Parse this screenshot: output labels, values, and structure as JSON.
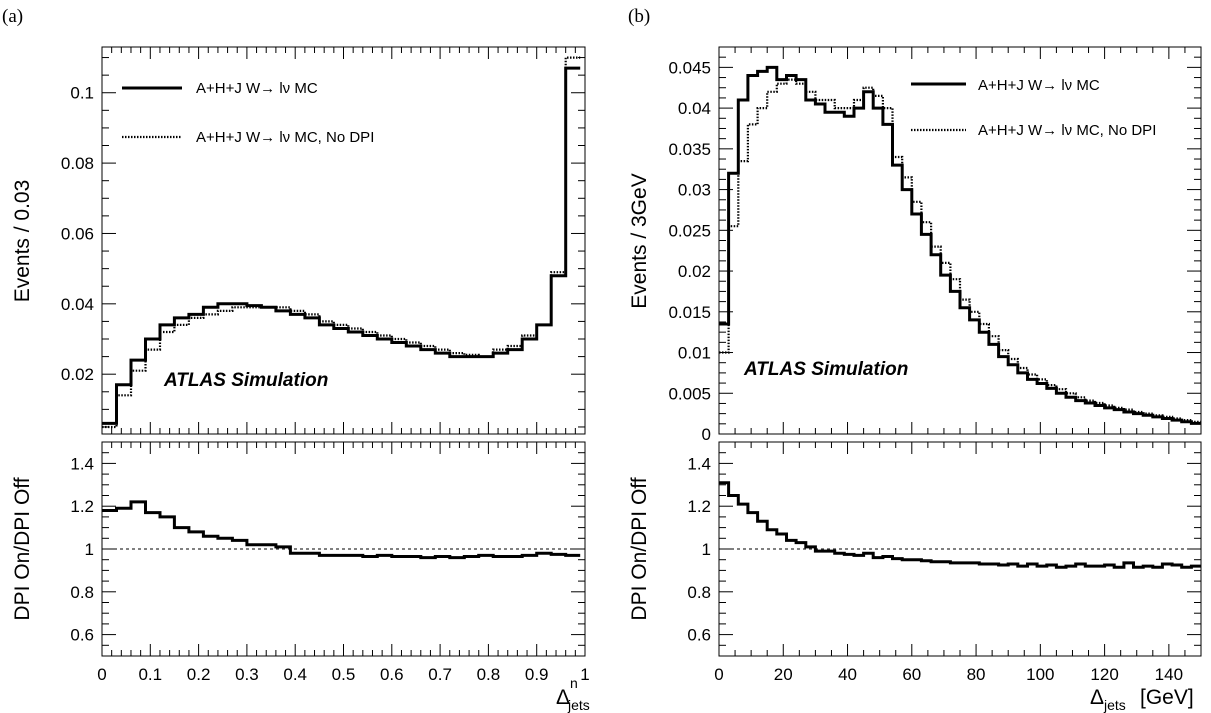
{
  "chart_data": [
    {
      "panel_label": "(a)",
      "type": "line",
      "step": true,
      "x_bin_edges": [
        0,
        0.03,
        0.06,
        0.09,
        0.12,
        0.15,
        0.18,
        0.21,
        0.24,
        0.27,
        0.3,
        0.33,
        0.36,
        0.39,
        0.42,
        0.45,
        0.48,
        0.51,
        0.54,
        0.57,
        0.6,
        0.63,
        0.66,
        0.69,
        0.72,
        0.75,
        0.78,
        0.81,
        0.84,
        0.87,
        0.9,
        0.93,
        0.96,
        0.99
      ],
      "series": [
        {
          "name": "A+H+J W→ lν MC",
          "style": "solid",
          "values": [
            0.006,
            0.017,
            0.024,
            0.03,
            0.034,
            0.036,
            0.037,
            0.039,
            0.04,
            0.04,
            0.0395,
            0.039,
            0.038,
            0.037,
            0.036,
            0.034,
            0.033,
            0.032,
            0.031,
            0.03,
            0.029,
            0.028,
            0.027,
            0.026,
            0.025,
            0.025,
            0.025,
            0.026,
            0.027,
            0.03,
            0.034,
            0.048,
            0.107
          ]
        },
        {
          "name": "A+H+J W→ lν MC, No DPI",
          "style": "dotted",
          "values": [
            0.005,
            0.014,
            0.021,
            0.027,
            0.032,
            0.034,
            0.036,
            0.037,
            0.038,
            0.039,
            0.039,
            0.039,
            0.039,
            0.038,
            0.037,
            0.035,
            0.034,
            0.033,
            0.032,
            0.031,
            0.03,
            0.029,
            0.028,
            0.027,
            0.026,
            0.0255,
            0.025,
            0.027,
            0.028,
            0.031,
            0.034,
            0.049,
            0.11
          ]
        }
      ],
      "ratio": {
        "ylabel": "DPI On/DPI Off",
        "values": [
          1.18,
          1.19,
          1.22,
          1.17,
          1.15,
          1.1,
          1.08,
          1.06,
          1.05,
          1.04,
          1.02,
          1.02,
          1.01,
          0.98,
          0.98,
          0.97,
          0.97,
          0.97,
          0.965,
          0.97,
          0.965,
          0.965,
          0.96,
          0.965,
          0.96,
          0.965,
          0.97,
          0.965,
          0.965,
          0.97,
          0.98,
          0.975,
          0.97
        ],
        "ylim": [
          0.5,
          1.5
        ],
        "reference": 1,
        "yticks": [
          "0.6",
          "0.8",
          "1",
          "1.2",
          "1.4"
        ]
      },
      "ylabel": "Events / 0.03",
      "xlabel": "Δ",
      "xlabel_superscript": "n",
      "xlabel_subscript": "jets",
      "xlim": [
        0,
        1
      ],
      "ylim": [
        0.003,
        0.113
      ],
      "xticks": [
        "0",
        "0.1",
        "0.2",
        "0.3",
        "0.4",
        "0.5",
        "0.6",
        "0.7",
        "0.8",
        "0.9",
        "1"
      ],
      "yticks": [
        "0.02",
        "0.04",
        "0.06",
        "0.08",
        "0.1"
      ],
      "annotation": "ATLAS Simulation",
      "legend": "top-left"
    },
    {
      "panel_label": "(b)",
      "type": "line",
      "step": true,
      "x_bin_edges": [
        0,
        3,
        6,
        9,
        12,
        15,
        18,
        21,
        24,
        27,
        30,
        33,
        36,
        39,
        42,
        45,
        48,
        51,
        54,
        57,
        60,
        63,
        66,
        69,
        72,
        75,
        78,
        81,
        84,
        87,
        90,
        93,
        96,
        99,
        102,
        105,
        108,
        111,
        114,
        117,
        120,
        123,
        126,
        129,
        132,
        135,
        138,
        141,
        144,
        147,
        150
      ],
      "series": [
        {
          "name": "A+H+J W→ lν MC",
          "style": "solid",
          "values": [
            0.0135,
            0.032,
            0.041,
            0.044,
            0.0445,
            0.045,
            0.0435,
            0.044,
            0.0435,
            0.041,
            0.0405,
            0.0395,
            0.0395,
            0.039,
            0.04,
            0.042,
            0.04,
            0.038,
            0.033,
            0.03,
            0.027,
            0.0245,
            0.022,
            0.0195,
            0.0175,
            0.0155,
            0.014,
            0.0125,
            0.011,
            0.0095,
            0.0085,
            0.0075,
            0.0067,
            0.0062,
            0.0056,
            0.005,
            0.0045,
            0.0041,
            0.0038,
            0.0035,
            0.0032,
            0.003,
            0.0027,
            0.0025,
            0.0023,
            0.0021,
            0.0019,
            0.0017,
            0.0015,
            0.0013
          ]
        },
        {
          "name": "A+H+J W→ lν MC, No DPI",
          "style": "dotted",
          "values": [
            0.01,
            0.0255,
            0.0335,
            0.038,
            0.04,
            0.042,
            0.043,
            0.0435,
            0.043,
            0.042,
            0.041,
            0.041,
            0.04,
            0.04,
            0.041,
            0.0425,
            0.0415,
            0.04,
            0.034,
            0.0315,
            0.0285,
            0.026,
            0.023,
            0.021,
            0.019,
            0.0165,
            0.015,
            0.0135,
            0.012,
            0.0103,
            0.0092,
            0.0081,
            0.0073,
            0.0067,
            0.006,
            0.0055,
            0.005,
            0.0045,
            0.0041,
            0.0038,
            0.0035,
            0.0032,
            0.003,
            0.0027,
            0.0025,
            0.0023,
            0.0021,
            0.0019,
            0.0017,
            0.0015
          ]
        }
      ],
      "ratio": {
        "ylabel": "DPI On/DPI Off",
        "values": [
          1.31,
          1.25,
          1.21,
          1.17,
          1.13,
          1.09,
          1.07,
          1.04,
          1.03,
          1.01,
          0.99,
          0.99,
          0.98,
          0.975,
          0.97,
          0.98,
          0.96,
          0.965,
          0.955,
          0.95,
          0.95,
          0.945,
          0.94,
          0.94,
          0.935,
          0.935,
          0.935,
          0.93,
          0.93,
          0.925,
          0.93,
          0.92,
          0.93,
          0.92,
          0.925,
          0.915,
          0.92,
          0.93,
          0.92,
          0.92,
          0.925,
          0.915,
          0.935,
          0.915,
          0.92,
          0.915,
          0.93,
          0.925,
          0.915,
          0.92
        ],
        "ylim": [
          0.5,
          1.5
        ],
        "reference": 1,
        "yticks": [
          "0.6",
          "0.8",
          "1",
          "1.2",
          "1.4"
        ]
      },
      "ylabel": "Events / 3GeV",
      "xlabel": "Δ",
      "xlabel_subscript": "jets",
      "xlabel_unit": "[GeV]",
      "xlim": [
        0,
        150
      ],
      "ylim": [
        0,
        0.0475
      ],
      "xticks": [
        "0",
        "20",
        "40",
        "60",
        "80",
        "100",
        "120",
        "140"
      ],
      "yticks": [
        "0",
        "0.005",
        "0.01",
        "0.015",
        "0.02",
        "0.025",
        "0.03",
        "0.035",
        "0.04",
        "0.045"
      ],
      "annotation": "ATLAS Simulation",
      "legend": "top-right"
    }
  ]
}
